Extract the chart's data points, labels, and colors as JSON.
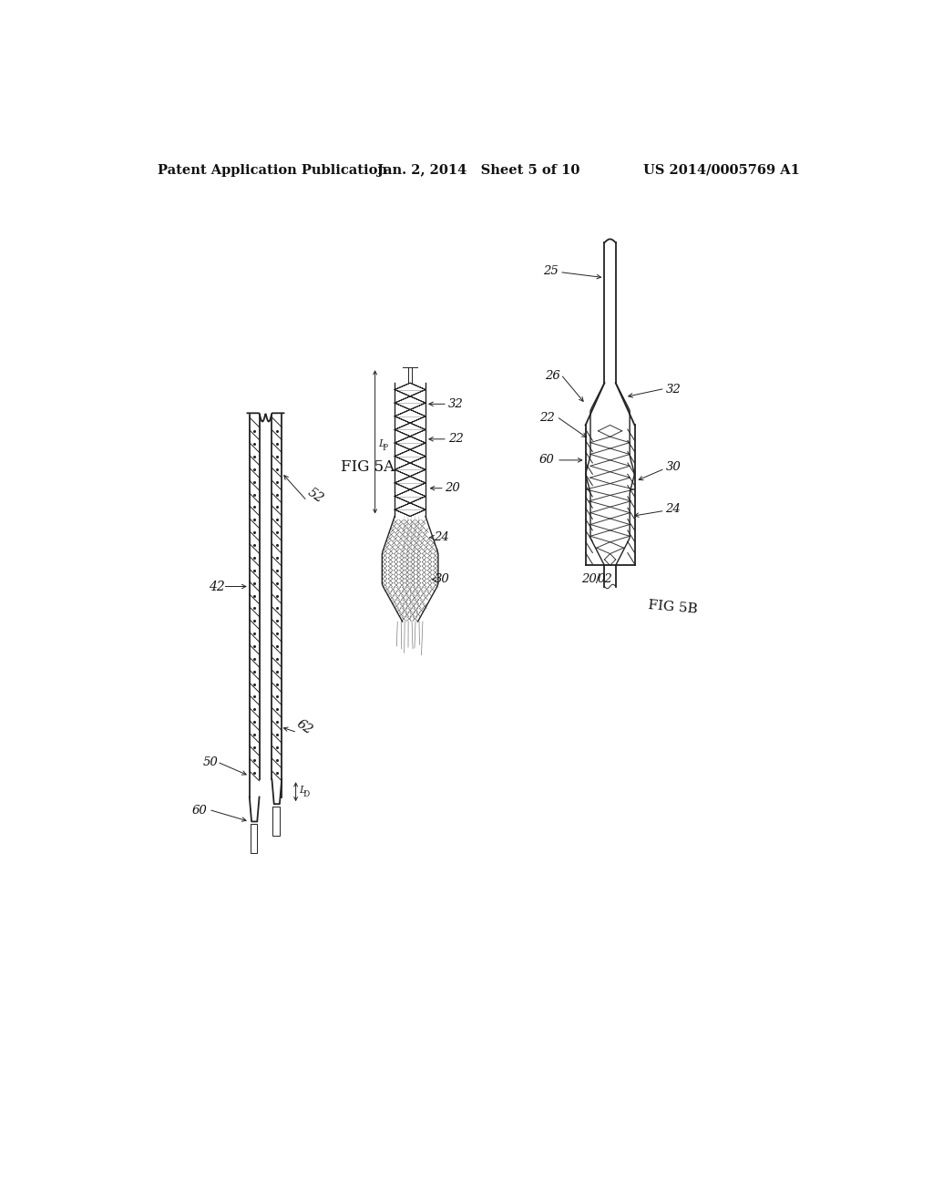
{
  "background_color": "#ffffff",
  "header": {
    "left": "Patent Application Publication",
    "center": "Jan. 2, 2014   Sheet 5 of 10",
    "right": "US 2014/0005769 A1",
    "fontsize": 10.5
  },
  "fig5a_label": "FIG 5A",
  "fig5b_label": "FIG 5B"
}
